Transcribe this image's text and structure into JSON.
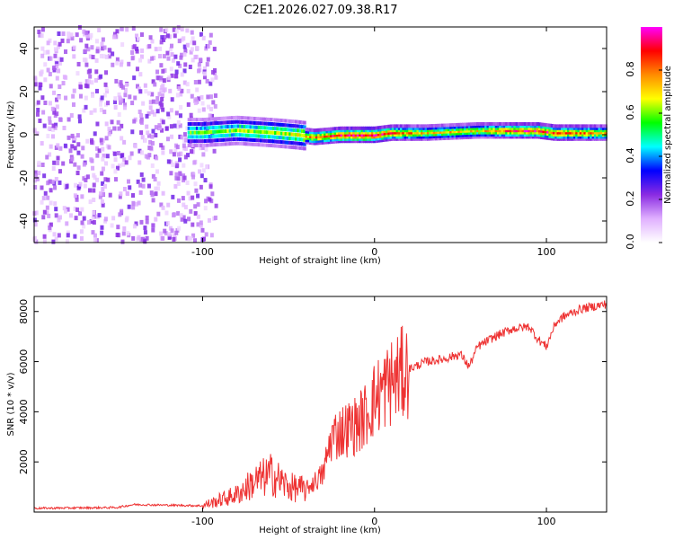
{
  "title": "C2E1.2026.027.09.38.R17",
  "chart_data": [
    {
      "type": "heatmap",
      "name": "spectrogram",
      "xlabel": "Height of straight line (km)",
      "ylabel": "Frequency (Hz)",
      "xlim": [
        -198,
        135
      ],
      "ylim": [
        -50,
        50
      ],
      "xticks": [
        -100,
        0,
        100
      ],
      "xtick_labels": [
        "-100",
        "0",
        "100"
      ],
      "yticks": [
        -40,
        -20,
        0,
        20,
        40
      ],
      "ytick_labels": [
        "-40",
        "-20",
        "0",
        "20",
        "40"
      ],
      "colorbar": {
        "label": "Normalized spectral amplitude",
        "range": [
          0,
          1
        ],
        "ticks": [
          0.0,
          0.2,
          0.4,
          0.6,
          0.8
        ],
        "tick_labels": [
          "0.0",
          "0.2",
          "0.4",
          "0.6",
          "0.8"
        ],
        "colors": [
          "#ffffff",
          "#e0b0ff",
          "#8a2be2",
          "#0000ff",
          "#00ffff",
          "#00ff00",
          "#ffff00",
          "#ff8c00",
          "#ff0000",
          "#ff00ff"
        ]
      },
      "signal_trace": {
        "x": [
          -100,
          -80,
          -60,
          -45,
          -35,
          -20,
          0,
          10,
          30,
          60,
          85,
          95,
          105,
          135
        ],
        "y": [
          1,
          2,
          1,
          0,
          -1,
          0,
          0,
          1,
          1,
          2,
          2,
          2,
          1,
          1
        ],
        "intensity": [
          0.55,
          0.6,
          0.6,
          0.65,
          0.8,
          0.9,
          0.95,
          0.85,
          0.7,
          0.7,
          0.9,
          0.9,
          0.85,
          0.75
        ]
      },
      "noise_region_x": [
        -198,
        -100
      ]
    },
    {
      "type": "line",
      "name": "snr",
      "xlabel": "Height of straight line (km)",
      "ylabel": "SNR (10 * v/v)",
      "xlim": [
        -198,
        135
      ],
      "ylim": [
        0,
        8600
      ],
      "xticks": [
        -100,
        0,
        100
      ],
      "xtick_labels": [
        "-100",
        "0",
        "100"
      ],
      "yticks": [
        2000,
        4000,
        6000,
        8000
      ],
      "ytick_labels": [
        "2000",
        "4000",
        "6000",
        "8000"
      ],
      "color": "#ee3333",
      "series": [
        {
          "name": "SNR",
          "x": [
            -198,
            -150,
            -140,
            -100,
            -80,
            -70,
            -60,
            -50,
            -40,
            -30,
            -25,
            -20,
            -10,
            -5,
            0,
            5,
            10,
            20,
            30,
            40,
            50,
            55,
            60,
            70,
            80,
            90,
            95,
            100,
            105,
            110,
            120,
            135
          ],
          "y": [
            150,
            180,
            300,
            250,
            700,
            1200,
            1500,
            1000,
            900,
            1500,
            3000,
            3200,
            3500,
            3900,
            4500,
            4900,
            5200,
            5700,
            6000,
            6100,
            6300,
            5800,
            6600,
            7000,
            7300,
            7400,
            6900,
            6600,
            7500,
            7800,
            8100,
            8300
          ]
        }
      ]
    }
  ]
}
